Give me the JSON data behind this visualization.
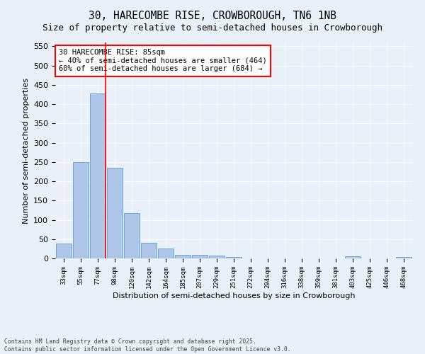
{
  "title": "30, HARECOMBE RISE, CROWBOROUGH, TN6 1NB",
  "subtitle": "Size of property relative to semi-detached houses in Crowborough",
  "xlabel": "Distribution of semi-detached houses by size in Crowborough",
  "ylabel": "Number of semi-detached properties",
  "footer_line1": "Contains HM Land Registry data © Crown copyright and database right 2025.",
  "footer_line2": "Contains public sector information licensed under the Open Government Licence v3.0.",
  "categories": [
    "33sqm",
    "55sqm",
    "77sqm",
    "98sqm",
    "120sqm",
    "142sqm",
    "164sqm",
    "185sqm",
    "207sqm",
    "229sqm",
    "251sqm",
    "272sqm",
    "294sqm",
    "316sqm",
    "338sqm",
    "359sqm",
    "381sqm",
    "403sqm",
    "425sqm",
    "446sqm",
    "468sqm"
  ],
  "values": [
    38,
    250,
    428,
    235,
    118,
    40,
    25,
    10,
    10,
    7,
    4,
    0,
    0,
    0,
    0,
    0,
    0,
    5,
    0,
    0,
    4
  ],
  "bar_color": "#aec6e8",
  "bar_edge_color": "#5a9fd4",
  "annotation_title": "30 HARECOMBE RISE: 85sqm",
  "annotation_line1": "← 40% of semi-detached houses are smaller (464)",
  "annotation_line2": "60% of semi-detached houses are larger (684) →",
  "ylim": [
    0,
    560
  ],
  "yticks": [
    0,
    50,
    100,
    150,
    200,
    250,
    300,
    350,
    400,
    450,
    500,
    550
  ],
  "bg_color": "#eaf0f8",
  "plot_bg_color": "#eaf0f8",
  "title_fontsize": 10.5,
  "subtitle_fontsize": 9
}
